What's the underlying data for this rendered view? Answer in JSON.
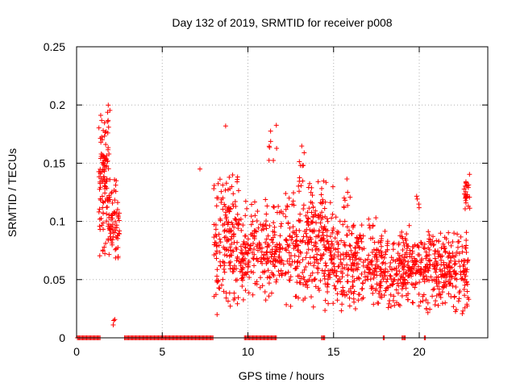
{
  "chart_data": {
    "type": "scatter",
    "title": "Day 132 of 2019, SRMTID for receiver p008",
    "xlabel": "GPS time / hours",
    "ylabel": "SRMTID / TECUs",
    "xlim": [
      0,
      24
    ],
    "ylim": [
      0,
      0.25
    ],
    "x_ticks": [
      0,
      5,
      10,
      15,
      20
    ],
    "x_tick_labels": [
      "0",
      "5",
      "10",
      "15",
      "20"
    ],
    "y_ticks": [
      0,
      0.05,
      0.1,
      0.15,
      0.2,
      0.25
    ],
    "y_tick_labels": [
      "0",
      "0.05",
      "0.1",
      "0.15",
      "0.2",
      "0.25"
    ],
    "grid": true,
    "marker": "+",
    "color": "#ff0000",
    "zero_segments": [
      [
        0.05,
        1.4
      ],
      [
        2.8,
        8.0
      ],
      [
        9.8,
        11.7
      ],
      [
        14.3,
        14.5
      ],
      [
        17.9,
        18.0
      ],
      [
        19.0,
        19.2
      ],
      [
        20.3,
        20.4
      ]
    ],
    "clusters": [
      {
        "x": [
          1.3,
          1.95
        ],
        "y": [
          0.06,
          0.21
        ],
        "n": 120
      },
      {
        "x": [
          1.9,
          2.5
        ],
        "y": [
          0.06,
          0.14
        ],
        "n": 60
      },
      {
        "x": [
          2.1,
          2.3
        ],
        "y": [
          0.01,
          0.02
        ],
        "n": 3
      },
      {
        "x": [
          8.0,
          9.5
        ],
        "y": [
          0.02,
          0.15
        ],
        "n": 170
      },
      {
        "x": [
          9.5,
          12.0
        ],
        "y": [
          0.03,
          0.12
        ],
        "n": 230
      },
      {
        "x": [
          11.2,
          11.7
        ],
        "y": [
          0.13,
          0.19
        ],
        "n": 8
      },
      {
        "x": [
          12.0,
          14.5
        ],
        "y": [
          0.02,
          0.14
        ],
        "n": 230
      },
      {
        "x": [
          13.0,
          13.4
        ],
        "y": [
          0.13,
          0.17
        ],
        "n": 8
      },
      {
        "x": [
          14.0,
          15.0
        ],
        "y": [
          0.06,
          0.15
        ],
        "n": 25
      },
      {
        "x": [
          14.5,
          17.5
        ],
        "y": [
          0.02,
          0.11
        ],
        "n": 270
      },
      {
        "x": [
          15.6,
          16.0
        ],
        "y": [
          0.1,
          0.14
        ],
        "n": 8
      },
      {
        "x": [
          17.5,
          20.0
        ],
        "y": [
          0.02,
          0.1
        ],
        "n": 240
      },
      {
        "x": [
          19.7,
          20.0
        ],
        "y": [
          0.1,
          0.125
        ],
        "n": 4
      },
      {
        "x": [
          20.0,
          22.9
        ],
        "y": [
          0.015,
          0.1
        ],
        "n": 270
      },
      {
        "x": [
          22.6,
          22.95
        ],
        "y": [
          0.1,
          0.145
        ],
        "n": 25
      }
    ],
    "isolated_points": [
      [
        7.2,
        0.145
      ],
      [
        8.2,
        0.02
      ],
      [
        8.7,
        0.182
      ]
    ]
  }
}
